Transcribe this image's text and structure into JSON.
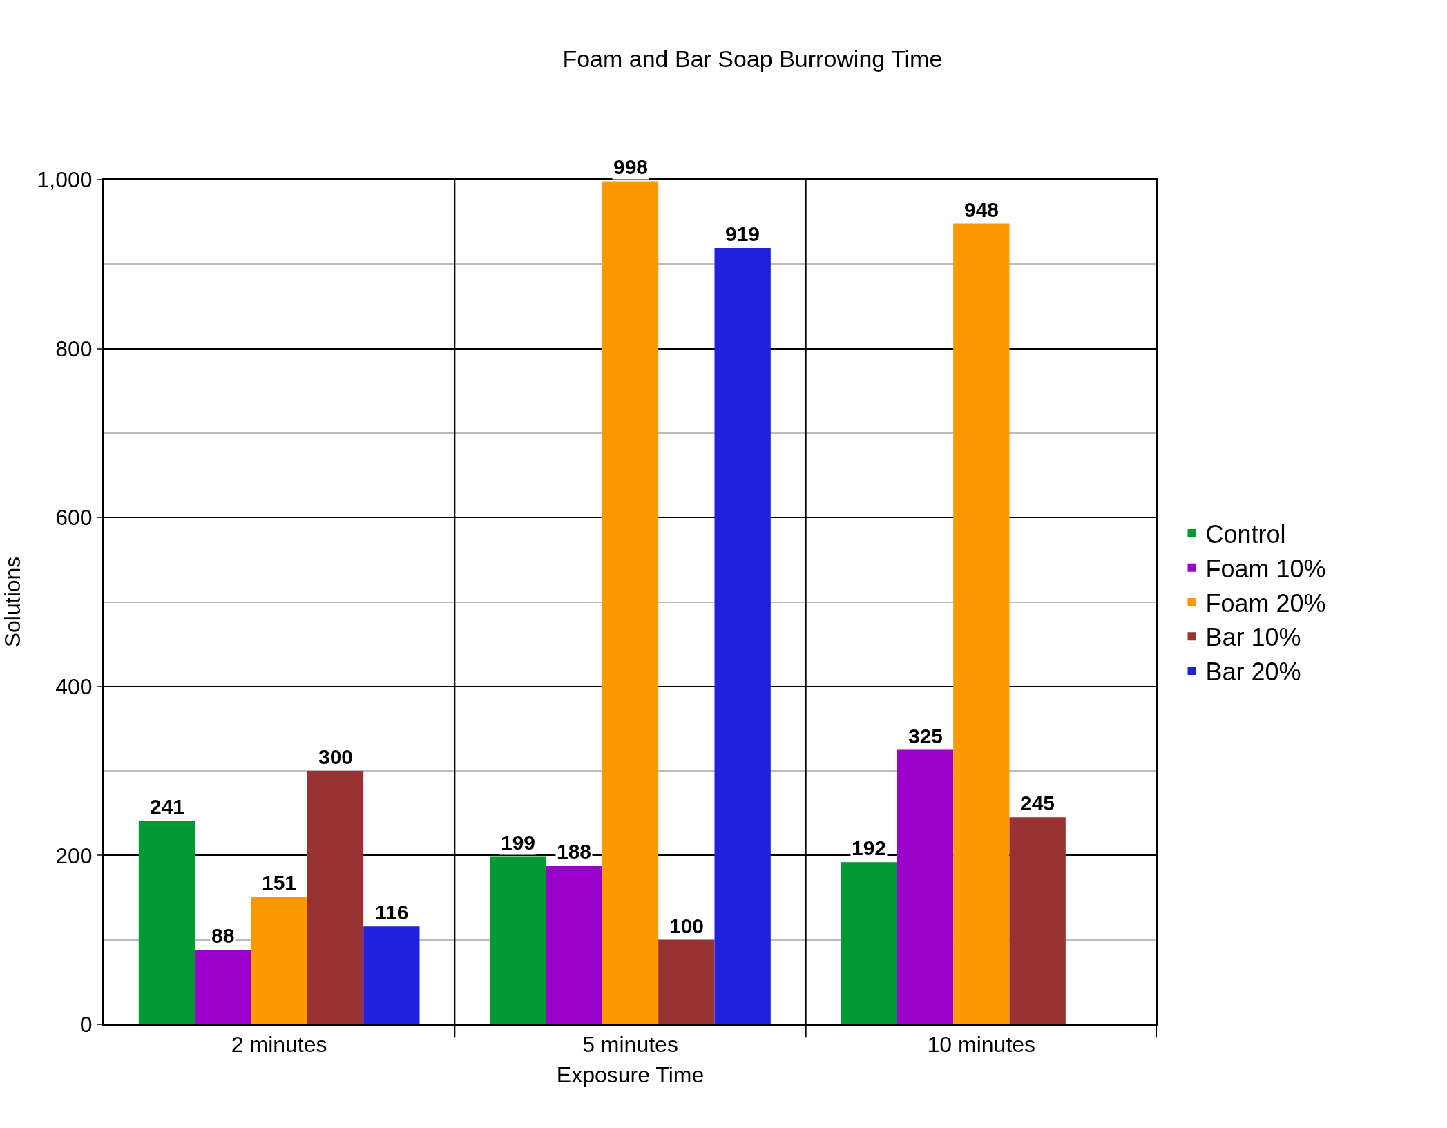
{
  "chart_data": {
    "type": "bar",
    "title": "Foam and Bar Soap Burrowing Time",
    "xlabel": "Exposure Time",
    "ylabel": "Solutions",
    "categories": [
      "2 minutes",
      "5 minutes",
      "10 minutes"
    ],
    "series": [
      {
        "name": "Control",
        "color": "#009933",
        "values": [
          241,
          199,
          192
        ]
      },
      {
        "name": "Foam 10%",
        "color": "#9900cc",
        "values": [
          88,
          188,
          325
        ]
      },
      {
        "name": "Foam 20%",
        "color": "#ff9900",
        "values": [
          151,
          998,
          948
        ]
      },
      {
        "name": "Bar 10%",
        "color": "#993333",
        "values": [
          300,
          100,
          245
        ]
      },
      {
        "name": "Bar 20%",
        "color": "#2020dd",
        "values": [
          116,
          919,
          null
        ]
      }
    ],
    "ylim": [
      0,
      1000
    ],
    "yticks": [
      0,
      200,
      400,
      600,
      800,
      {
        "value": 1000,
        "label": "1,000"
      }
    ],
    "grid": "y",
    "legend": "right",
    "data_labels": true
  }
}
